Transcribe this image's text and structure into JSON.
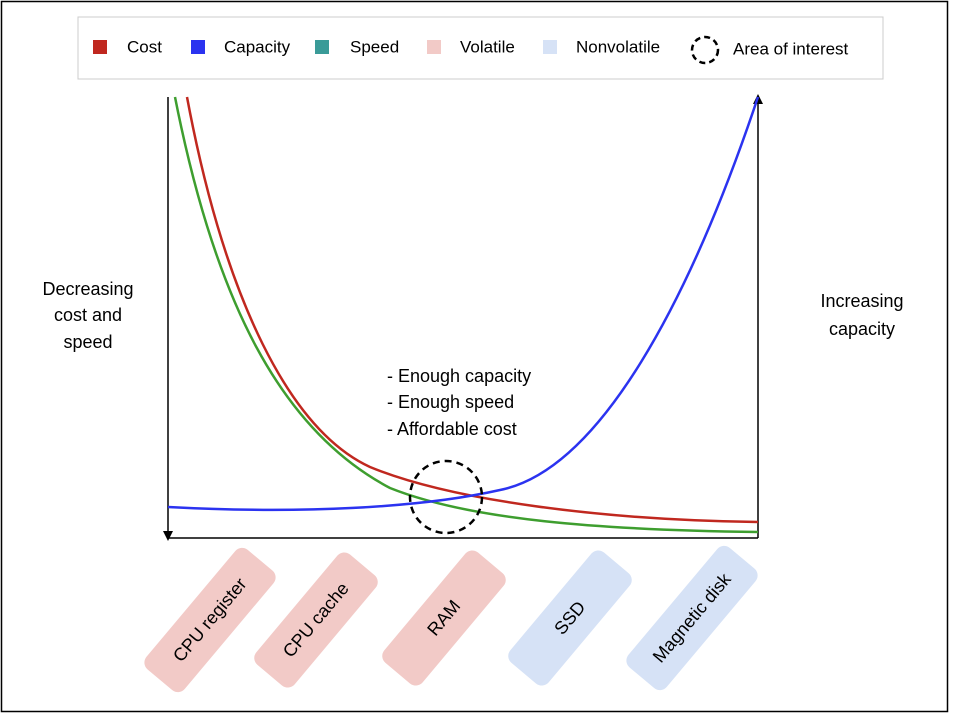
{
  "legend": [
    "Cost",
    "Capacity",
    "Speed",
    "Volatile",
    "Nonvolatile",
    "Area of interest"
  ],
  "left_axis_label": [
    "Decreasing",
    "cost and",
    "speed"
  ],
  "right_axis_label": [
    "Increasing",
    "capacity"
  ],
  "annotation": [
    "- Enough capacity",
    "- Enough speed",
    "- Affordable cost"
  ],
  "storage": [
    "CPU register",
    "CPU cache",
    "RAM",
    "SSD",
    "Magnetic disk"
  ]
}
